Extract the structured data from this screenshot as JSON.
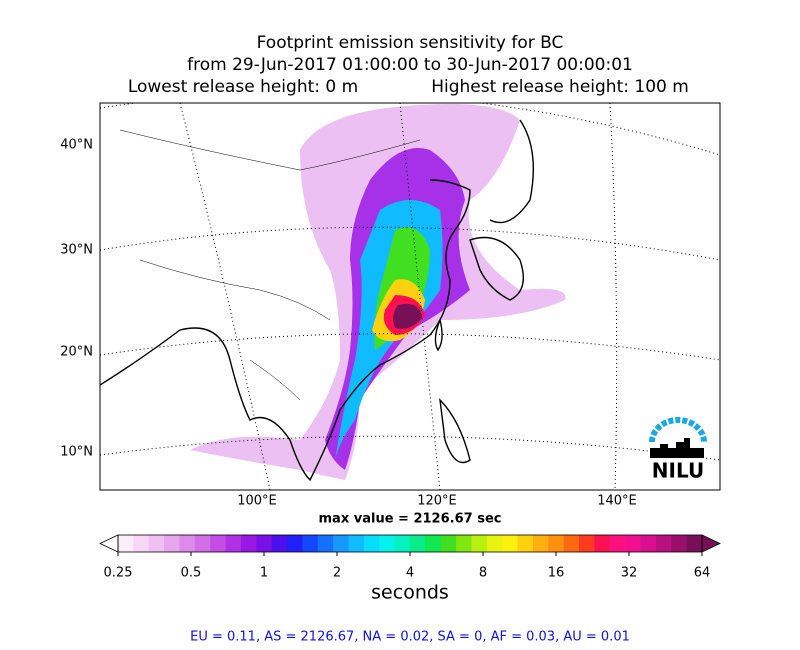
{
  "title": {
    "line1": "Footprint emission sensitivity for BC",
    "line2": "from 29-Jun-2017 01:00:00 to 30-Jun-2017 00:00:01",
    "lowest": "Lowest release height: 0 m",
    "highest": "Highest release height: 100 m"
  },
  "map": {
    "lat_labels": [
      "40°N",
      "30°N",
      "20°N",
      "10°N"
    ],
    "lon_labels": [
      "100°E",
      "120°E",
      "140°E"
    ],
    "logo": "NILU"
  },
  "max_value": "max value = 2126.67 sec",
  "colorbar": {
    "ticks": [
      0.25,
      0.5,
      1,
      2,
      4,
      8,
      16,
      32,
      64
    ],
    "label": "seconds",
    "log_base": 2,
    "colors": [
      "#fbeefb",
      "#f6d8f6",
      "#f0c0f2",
      "#e8a6ee",
      "#de8aea",
      "#d26ee8",
      "#c24ee6",
      "#b030e6",
      "#9a18e6",
      "#7a10e6",
      "#4a10ee",
      "#2020f8",
      "#1448ff",
      "#1670ff",
      "#1698ff",
      "#10bcff",
      "#08dcff",
      "#06f0ee",
      "#06f0c0",
      "#08ec8a",
      "#10e850",
      "#40e020",
      "#80e810",
      "#b8f010",
      "#e8f410",
      "#fff010",
      "#ffd010",
      "#ffb010",
      "#ff9010",
      "#ff6a10",
      "#ff3c20",
      "#ff1050",
      "#ff1080",
      "#f01090",
      "#d81090",
      "#b8107e",
      "#98106a",
      "#781058"
    ]
  },
  "footer": "EU = 0.11,  AS = 2126.67,  NA = 0.02,  SA = 0,  AF = 0.03,  AU = 0.01"
}
